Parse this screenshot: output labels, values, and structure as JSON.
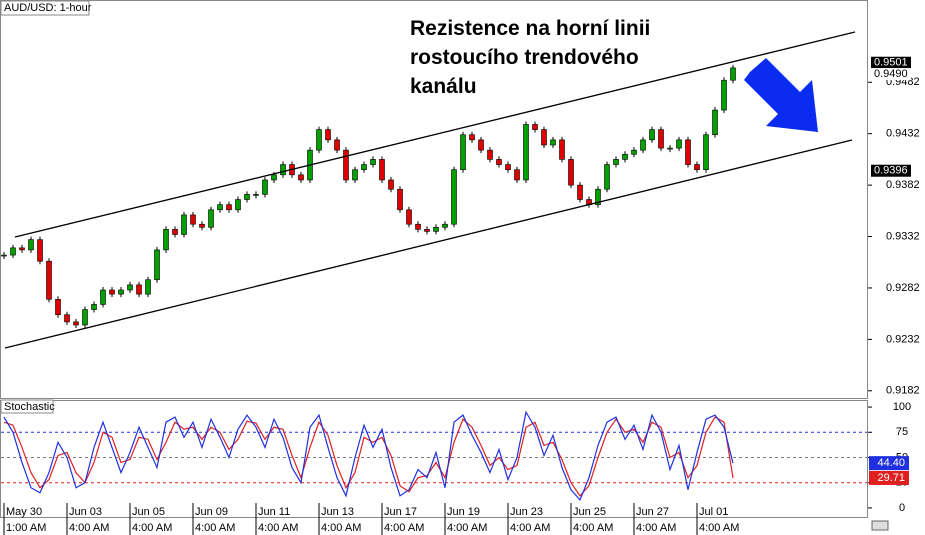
{
  "chart_data": [
    {
      "type": "candlestick",
      "title": "AUD/USD: 1-hour",
      "annotation": [
        "Rezistence na horní linii",
        "rostoucího trendového",
        "kanálu"
      ],
      "categories": [
        "May 30",
        null,
        null,
        null,
        null,
        null,
        null,
        "Jun 03",
        null,
        null,
        null,
        null,
        null,
        null,
        "Jun 05",
        null,
        null,
        null,
        null,
        null,
        null,
        "Jun 09",
        null,
        null,
        null,
        null,
        null,
        null,
        "Jun 11",
        null,
        null,
        null,
        null,
        null,
        null,
        "Jun 13",
        null,
        null,
        null,
        null,
        null,
        null,
        "Jun 17",
        null,
        null,
        null,
        null,
        null,
        null,
        "Jun 19",
        null,
        null,
        null,
        null,
        null,
        null,
        "Jun 23",
        null,
        null,
        null,
        null,
        null,
        null,
        "Jun 25",
        null,
        null,
        null,
        null,
        null,
        null,
        "Jun 27",
        null,
        null,
        null,
        null,
        null,
        null,
        "Jul 01",
        null,
        null,
        null,
        null
      ],
      "category_times": [
        "1:00 AM",
        null,
        null,
        null,
        null,
        null,
        null,
        "4:00 AM",
        null,
        null,
        null,
        null,
        null,
        null,
        "4:00 AM",
        null,
        null,
        null,
        null,
        null,
        null,
        "4:00 AM",
        null,
        null,
        null,
        null,
        null,
        null,
        "4:00 AM",
        null,
        null,
        null,
        null,
        null,
        null,
        "4:00 AM",
        null,
        null,
        null,
        null,
        null,
        null,
        "4:00 AM",
        null,
        null,
        null,
        null,
        null,
        null,
        "4:00 AM",
        null,
        null,
        null,
        null,
        null,
        null,
        "4:00 AM",
        null,
        null,
        null,
        null,
        null,
        null,
        "4:00 AM",
        null,
        null,
        null,
        null,
        null,
        null,
        "4:00 AM",
        null,
        null,
        null,
        null,
        null,
        null,
        "4:00 AM",
        null,
        null,
        null,
        null
      ],
      "close": [
        0.9314,
        0.9321,
        0.9319,
        0.9329,
        0.9308,
        0.9271,
        0.9256,
        0.9249,
        0.9246,
        0.9261,
        0.9266,
        0.928,
        0.9276,
        0.928,
        0.9285,
        0.9276,
        0.929,
        0.9319,
        0.9339,
        0.9334,
        0.9353,
        0.9344,
        0.9341,
        0.9358,
        0.9363,
        0.9358,
        0.9368,
        0.9373,
        0.9373,
        0.9387,
        0.9392,
        0.9402,
        0.9392,
        0.9387,
        0.9416,
        0.9436,
        0.9426,
        0.9416,
        0.9387,
        0.9397,
        0.9402,
        0.9407,
        0.9387,
        0.9378,
        0.9358,
        0.9344,
        0.9339,
        0.9337,
        0.9341,
        0.9344,
        0.9397,
        0.9431,
        0.9426,
        0.9416,
        0.9407,
        0.9402,
        0.9397,
        0.9387,
        0.9441,
        0.9436,
        0.9421,
        0.9426,
        0.9407,
        0.9382,
        0.9368,
        0.9363,
        0.9378,
        0.9402,
        0.9407,
        0.9412,
        0.9416,
        0.9426,
        0.9436,
        0.9418,
        0.9418,
        0.9426,
        0.9402,
        0.9397,
        0.9431,
        0.9455,
        0.9484,
        0.9496
      ],
      "up_color": "#00a000",
      "down_color": "#e00000",
      "ylim": [
        0.9175,
        0.9562
      ],
      "yticks": [
        0.9182,
        0.9232,
        0.9282,
        0.9332,
        0.9382,
        0.9432,
        0.9482
      ],
      "price_labels": [
        0.9501,
        {
          "value": 0.949,
          "label": "0.9490"
        },
        0.9396
      ]
    },
    {
      "type": "line",
      "title": "Stochastic",
      "series": [
        {
          "color": "#2030e0",
          "values": [
            90,
            75,
            45,
            20,
            15,
            35,
            65,
            50,
            20,
            25,
            60,
            85,
            60,
            35,
            55,
            80,
            60,
            40,
            85,
            90,
            70,
            85,
            60,
            88,
            70,
            50,
            78,
            92,
            80,
            60,
            88,
            70,
            40,
            25,
            80,
            92,
            60,
            30,
            12,
            50,
            82,
            60,
            78,
            40,
            12,
            18,
            38,
            30,
            55,
            20,
            85,
            92,
            72,
            55,
            35,
            58,
            28,
            50,
            95,
            80,
            52,
            72,
            40,
            18,
            8,
            30,
            62,
            85,
            90,
            68,
            82,
            58,
            92,
            75,
            38,
            62,
            18,
            55,
            88,
            92,
            80,
            44.4
          ]
        },
        {
          "color": "#e02020",
          "values": [
            85,
            82,
            60,
            35,
            20,
            28,
            52,
            55,
            35,
            25,
            45,
            75,
            70,
            45,
            48,
            70,
            68,
            48,
            65,
            85,
            78,
            80,
            68,
            80,
            75,
            58,
            68,
            86,
            84,
            68,
            80,
            78,
            52,
            30,
            60,
            85,
            72,
            42,
            20,
            35,
            70,
            65,
            70,
            52,
            22,
            16,
            30,
            32,
            45,
            30,
            65,
            88,
            80,
            62,
            42,
            50,
            38,
            42,
            80,
            85,
            62,
            65,
            48,
            25,
            12,
            22,
            50,
            75,
            88,
            75,
            78,
            65,
            85,
            80,
            50,
            55,
            30,
            42,
            75,
            90,
            85,
            29.71
          ]
        }
      ],
      "ylim": [
        -10,
        107
      ],
      "yticks": [
        0,
        25,
        50,
        75,
        100
      ],
      "levels": [
        75,
        50,
        25
      ],
      "level_colors": [
        "#2030e0",
        "#808080",
        "#e02020"
      ],
      "value_labels": [
        {
          "value": 44.4,
          "label": "44.40"
        },
        29.71
      ]
    }
  ]
}
